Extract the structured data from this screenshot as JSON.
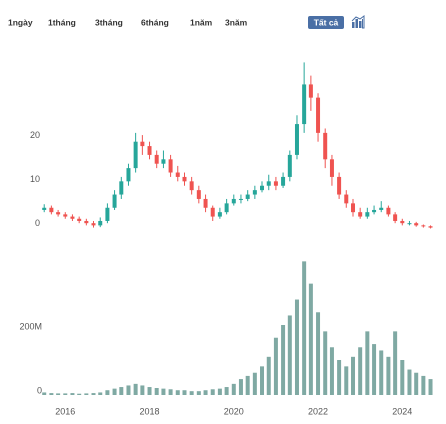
{
  "toolbar": {
    "buttons": [
      "1ngày",
      "1tháng",
      "3tháng",
      "6tháng",
      "1năm",
      "3năm",
      "Tất cả"
    ],
    "selected": 6,
    "selected_color": "#4a6fa5"
  },
  "chart_data": {
    "type": "candlestick",
    "x": [
      2015.5,
      2015.67,
      2015.83,
      2016.0,
      2016.17,
      2016.33,
      2016.5,
      2016.67,
      2016.83,
      2017.0,
      2017.17,
      2017.33,
      2017.5,
      2017.67,
      2017.83,
      2018.0,
      2018.17,
      2018.33,
      2018.5,
      2018.67,
      2018.83,
      2019.0,
      2019.17,
      2019.33,
      2019.5,
      2019.67,
      2019.83,
      2020.0,
      2020.17,
      2020.33,
      2020.5,
      2020.67,
      2020.83,
      2021.0,
      2021.17,
      2021.33,
      2021.5,
      2021.67,
      2021.83,
      2022.0,
      2022.17,
      2022.33,
      2022.5,
      2022.67,
      2022.83,
      2023.0,
      2023.17,
      2023.33,
      2023.5,
      2023.67,
      2023.83,
      2024.0,
      2024.17,
      2024.33,
      2024.5,
      2024.67
    ],
    "open": [
      4.5,
      5,
      4,
      3.5,
      3,
      2.5,
      2,
      1.5,
      1,
      2,
      5,
      8,
      11,
      14,
      20,
      19,
      17,
      15,
      16,
      13,
      12,
      11,
      9,
      7,
      5,
      3,
      4,
      6,
      7,
      7,
      8,
      9,
      10,
      11,
      10,
      12,
      17,
      24,
      33,
      30,
      22,
      16,
      12,
      8,
      6,
      4,
      3,
      4,
      4.5,
      5,
      3.5,
      2,
      1.5,
      1.5,
      1,
      0.8
    ],
    "high": [
      5.8,
      5.5,
      4.5,
      4,
      3.5,
      3,
      2.5,
      2,
      2.8,
      6,
      9,
      12,
      15,
      22,
      21.5,
      20,
      18,
      18,
      17,
      14.5,
      13,
      12,
      10,
      8,
      5.5,
      5,
      7,
      8,
      8,
      9,
      10,
      11,
      12.5,
      12,
      13,
      18,
      26,
      38,
      35,
      31,
      23,
      17,
      13,
      9,
      7,
      5,
      5,
      5.5,
      6.5,
      5.5,
      4,
      2.5,
      2,
      1.8,
      1.2,
      1
    ],
    "low": [
      4,
      3.5,
      3,
      2.5,
      2,
      1.5,
      1,
      0.5,
      0.6,
      1.5,
      4.5,
      7,
      10,
      13,
      17,
      16,
      14,
      14,
      12,
      11,
      10,
      8,
      6,
      4,
      2,
      2.5,
      3.5,
      5.5,
      6,
      6.5,
      7,
      8.5,
      9,
      9,
      9.5,
      11,
      16,
      22,
      27,
      20,
      14,
      10,
      7,
      5,
      3,
      2.5,
      2.5,
      3.5,
      4,
      3,
      1.5,
      1,
      1,
      0.7,
      0.5,
      0.3
    ],
    "close": [
      5,
      4,
      3.5,
      3,
      2.5,
      2,
      1.5,
      1,
      2,
      5,
      8,
      11,
      14,
      20,
      19,
      17,
      15,
      16,
      13,
      12,
      11,
      9,
      7,
      5,
      3,
      4,
      6,
      7,
      7,
      8,
      9,
      10,
      11,
      10,
      12,
      17,
      24,
      33,
      30,
      22,
      16,
      12,
      8,
      6,
      4,
      3,
      4,
      4.5,
      5,
      3.5,
      2,
      1.5,
      1.5,
      1,
      0.8,
      0.5
    ],
    "volume": [
      8,
      6,
      5,
      5,
      6,
      4,
      5,
      6,
      8,
      15,
      20,
      25,
      30,
      35,
      30,
      25,
      22,
      20,
      18,
      15,
      15,
      12,
      12,
      15,
      18,
      20,
      25,
      35,
      50,
      60,
      70,
      90,
      120,
      180,
      220,
      250,
      300,
      420,
      350,
      260,
      200,
      150,
      110,
      90,
      120,
      150,
      200,
      160,
      140,
      120,
      200,
      110,
      80,
      70,
      60,
      50
    ],
    "up_color": "#26a69a",
    "down_color": "#ef5350",
    "volume_color": "#7fa9a3",
    "xlim": [
      2015.4,
      2024.8
    ],
    "xticks": [
      2016,
      2018,
      2020,
      2022,
      2024
    ],
    "ylim": [
      -3,
      39
    ],
    "yticks": [
      0,
      10,
      20
    ],
    "volume_ylim": [
      0,
      440
    ],
    "volume_yticks": [
      0,
      {
        "value": 200,
        "label": "200M"
      }
    ],
    "grid": false
  }
}
